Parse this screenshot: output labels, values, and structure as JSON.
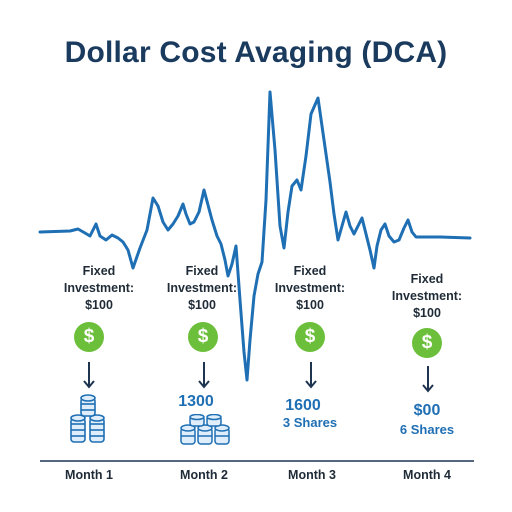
{
  "title": "Dollar Cost Avaging (DCA)",
  "months": [
    {
      "label": "Month 1",
      "investment": "Fixed\nInvestment:\n$100",
      "amount": "",
      "shares": ""
    },
    {
      "label": "Month 2",
      "investment": "Fixed\nInvestment:\n$100",
      "amount": "1300",
      "shares": ""
    },
    {
      "label": "Month 3",
      "investment": "Fixed\nInvestment:\n$100",
      "amount": "1600",
      "shares": "3 Shares"
    },
    {
      "label": "Month 4",
      "investment": "Fixed\nInvestment:\n$100",
      "amount": "$00",
      "shares": "6 Shares"
    }
  ],
  "dollar_symbol": "$",
  "icons": {
    "dollar": "dollar-coin-icon",
    "arrow": "arrow-down-icon",
    "coins": "coin-stack-icon"
  },
  "colors": {
    "title": "#1a3a5e",
    "line": "#1f6fb4",
    "dollar": "#6cbf3a",
    "text": "#1f2b37"
  }
}
